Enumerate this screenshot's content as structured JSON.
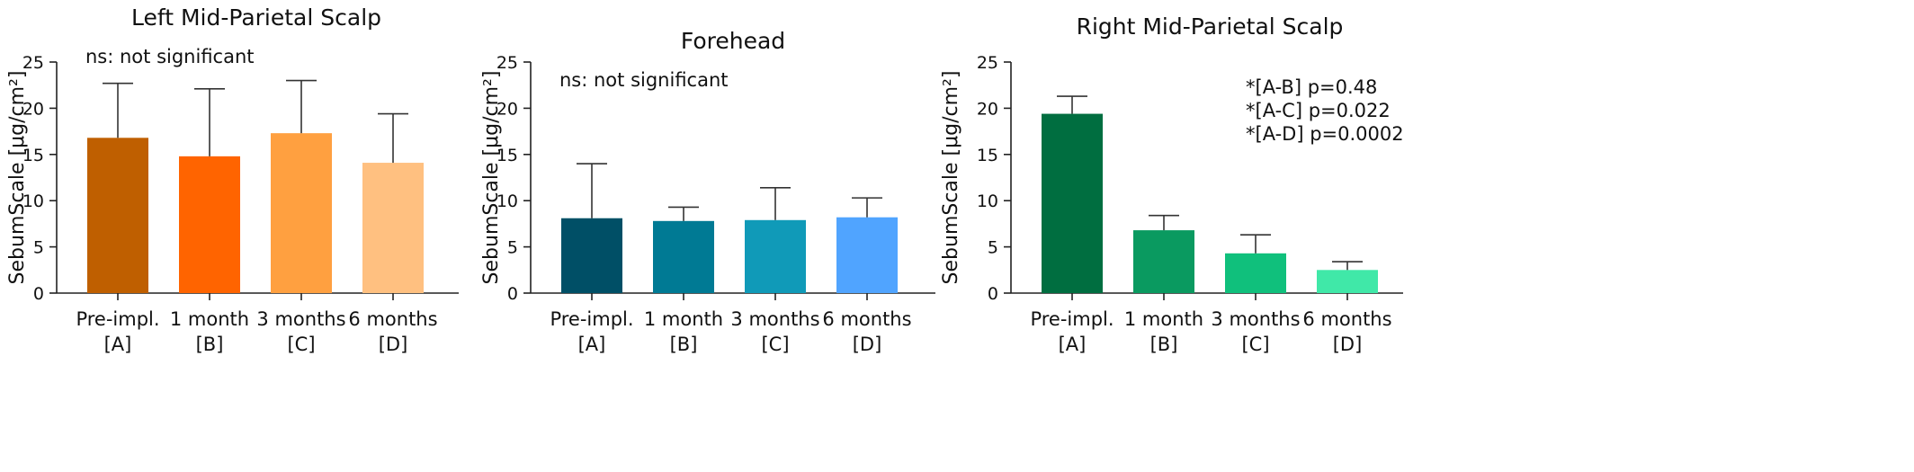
{
  "chart_data": [
    {
      "type": "bar",
      "title": "Left Mid-Parietal Scalp",
      "ylabel": "SebumScale [μg/cm²]",
      "ylim": [
        0,
        25
      ],
      "yticks": [
        0,
        5,
        10,
        15,
        20,
        25
      ],
      "categories": [
        {
          "name": "Pre-impl.",
          "group": "[A]"
        },
        {
          "name": "1 month",
          "group": "[B]"
        },
        {
          "name": "3 months",
          "group": "[C]"
        },
        {
          "name": "6 months",
          "group": "[D]"
        }
      ],
      "values": [
        16.8,
        14.8,
        17.3,
        14.1
      ],
      "error_upper": [
        22.7,
        22.1,
        23.0,
        19.4
      ],
      "colors": [
        "#bf5f00",
        "#ff6400",
        "#ffa040",
        "#ffc080"
      ],
      "annotations": [
        "ns: not significant"
      ]
    },
    {
      "type": "bar",
      "title": "Forehead",
      "ylabel": "SebumScale [μg/cm²]",
      "ylim": [
        0,
        25
      ],
      "yticks": [
        0,
        5,
        10,
        15,
        20,
        25
      ],
      "categories": [
        {
          "name": "Pre-impl.",
          "group": "[A]"
        },
        {
          "name": "1 month",
          "group": "[B]"
        },
        {
          "name": "3 months",
          "group": "[C]"
        },
        {
          "name": "6 months",
          "group": "[D]"
        }
      ],
      "values": [
        8.1,
        7.8,
        7.9,
        8.2
      ],
      "error_upper": [
        14.0,
        9.3,
        11.4,
        10.3
      ],
      "colors": [
        "#004f66",
        "#007a94",
        "#109ab8",
        "#50a4ff"
      ],
      "annotations": [
        "ns: not significant"
      ]
    },
    {
      "type": "bar",
      "title": "Right Mid-Parietal Scalp",
      "ylabel": "SebumScale [μg/cm²]",
      "ylim": [
        0,
        25
      ],
      "yticks": [
        0,
        5,
        10,
        15,
        20,
        25
      ],
      "categories": [
        {
          "name": "Pre-impl.",
          "group": "[A]"
        },
        {
          "name": "1 month",
          "group": "[B]"
        },
        {
          "name": "3 months",
          "group": "[C]"
        },
        {
          "name": "6 months",
          "group": "[D]"
        }
      ],
      "values": [
        19.4,
        6.8,
        4.3,
        2.5
      ],
      "error_upper": [
        21.3,
        8.4,
        6.3,
        3.4
      ],
      "colors": [
        "#006e40",
        "#0a9a60",
        "#10c07c",
        "#40e8a8"
      ],
      "annotations": [
        "*[A-B] p=0.48",
        "*[A-C] p=0.022",
        "*[A-D] p=0.0002"
      ]
    }
  ]
}
